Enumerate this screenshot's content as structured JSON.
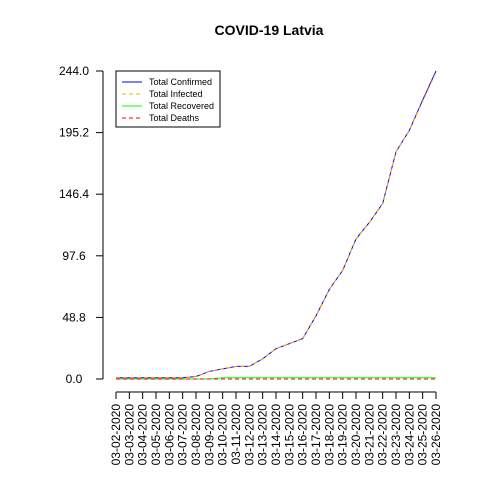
{
  "chart_data": {
    "type": "line",
    "title": "COVID-19 Latvia",
    "xlabel": "",
    "ylabel": "",
    "x": [
      "03-02-2020",
      "03-03-2020",
      "03-04-2020",
      "03-05-2020",
      "03-06-2020",
      "03-07-2020",
      "03-08-2020",
      "03-09-2020",
      "03-10-2020",
      "03-11-2020",
      "03-12-2020",
      "03-13-2020",
      "03-14-2020",
      "03-15-2020",
      "03-16-2020",
      "03-17-2020",
      "03-18-2020",
      "03-19-2020",
      "03-20-2020",
      "03-21-2020",
      "03-22-2020",
      "03-23-2020",
      "03-24-2020",
      "03-25-2020",
      "03-26-2020"
    ],
    "ylim": [
      0,
      244
    ],
    "yticks": [
      "0.0",
      "48.8",
      "97.6",
      "146.4",
      "195.2",
      "244.0"
    ],
    "grid": false,
    "legend_position": "top-left",
    "series": [
      {
        "name": "Total Confirmed",
        "color": "#0000ff",
        "dash": "solid",
        "values": [
          1,
          1,
          1,
          1,
          1,
          1,
          2,
          6,
          8,
          10,
          10,
          16,
          24,
          28,
          32,
          50,
          71,
          86,
          111,
          124,
          139,
          180,
          197,
          221,
          244
        ]
      },
      {
        "name": "Total Infected",
        "color": "#ffa500",
        "dash": "dashed",
        "values": [
          1,
          1,
          1,
          1,
          1,
          1,
          2,
          6,
          8,
          10,
          10,
          16,
          24,
          28,
          32,
          50,
          71,
          86,
          111,
          124,
          139,
          180,
          197,
          220,
          243
        ]
      },
      {
        "name": "Total Recovered",
        "color": "#00ff00",
        "dash": "solid",
        "values": [
          0,
          0,
          0,
          0,
          0,
          0,
          0,
          0,
          1,
          1,
          1,
          1,
          1,
          1,
          1,
          1,
          1,
          1,
          1,
          1,
          1,
          1,
          1,
          1,
          1
        ]
      },
      {
        "name": "Total Deaths",
        "color": "#ff0000",
        "dash": "dashed",
        "values": [
          0,
          0,
          0,
          0,
          0,
          0,
          0,
          0,
          0,
          0,
          0,
          0,
          0,
          0,
          0,
          0,
          0,
          0,
          0,
          0,
          0,
          0,
          0,
          0,
          0
        ]
      }
    ]
  }
}
